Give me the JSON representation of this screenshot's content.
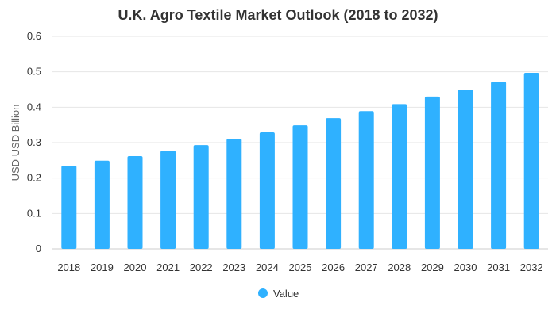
{
  "chart_data": {
    "type": "bar",
    "title": "U.K. Agro Textile Market Outlook (2018 to 2032)",
    "ylabel": "USD USD Billion",
    "xlabel": "",
    "categories": [
      "2018",
      "2019",
      "2020",
      "2021",
      "2022",
      "2023",
      "2024",
      "2025",
      "2026",
      "2027",
      "2028",
      "2029",
      "2030",
      "2031",
      "2032"
    ],
    "series": [
      {
        "name": "Value",
        "color": "#2FB1FF",
        "values": [
          0.235,
          0.249,
          0.262,
          0.277,
          0.293,
          0.311,
          0.329,
          0.349,
          0.369,
          0.389,
          0.409,
          0.43,
          0.45,
          0.472,
          0.497
        ]
      }
    ],
    "ylim": [
      0,
      0.6
    ],
    "yticks": [
      "0",
      "0.1",
      "0.2",
      "0.3",
      "0.4",
      "0.5",
      "0.6"
    ],
    "grid": true,
    "legend_position": "bottom"
  }
}
